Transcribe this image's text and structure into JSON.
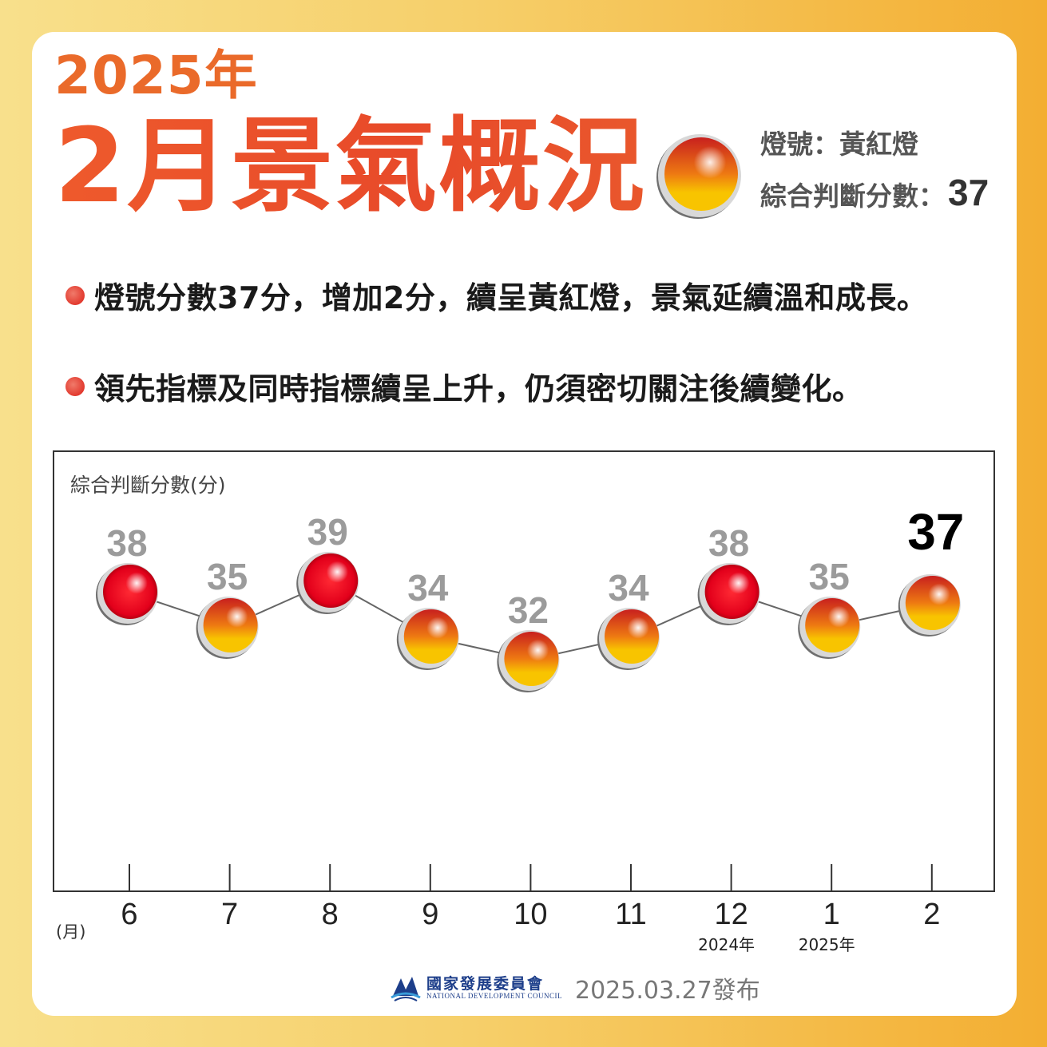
{
  "header": {
    "year_title": "2025年",
    "month_title": "2月景氣概況",
    "signal_label": "燈號：黃紅燈",
    "score_label": "綜合判斷分數：",
    "score_value": "37"
  },
  "bullets": [
    "燈號分數37分，增加2分，續呈黃紅燈，景氣延續溫和成長。",
    "領先指標及同時指標續呈上升，仍須密切關注後續變化。"
  ],
  "chart_data": {
    "type": "line",
    "ylabel": "綜合判斷分數(分)",
    "xunit": "(月)",
    "categories": [
      "6",
      "7",
      "8",
      "9",
      "10",
      "11",
      "12",
      "1",
      "2"
    ],
    "year_labels": [
      {
        "index": 6,
        "label": "2024年"
      },
      {
        "index": 7,
        "label": "2025年"
      }
    ],
    "values": [
      38,
      35,
      39,
      34,
      32,
      34,
      38,
      35,
      37
    ],
    "lights": [
      "red",
      "yellow-red",
      "red",
      "yellow-red",
      "yellow-red",
      "yellow-red",
      "red",
      "yellow-red",
      "yellow-red"
    ],
    "highlight_index": 8,
    "colors": {
      "red": "#e3001b",
      "yellow_red_top": "#c8201e",
      "yellow_red_bottom": "#f6c300",
      "label_gray": "#9b9b9b",
      "label_highlight": "#000000"
    }
  },
  "footer": {
    "org_cn": "國家發展委員會",
    "org_en": "NATIONAL DEVELOPMENT COUNCIL",
    "release_date": "2025.03.27發布"
  }
}
